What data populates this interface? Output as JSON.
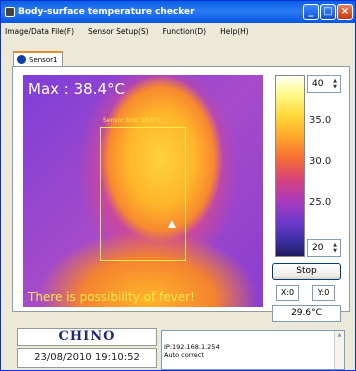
{
  "window": {
    "title": "Body-surface temperature checker",
    "controls": {
      "minimize": "_",
      "maximize": "□",
      "close": "×"
    }
  },
  "menu": [
    {
      "label": "Image/Data File(F)"
    },
    {
      "label": "Sensor Setup(S)"
    },
    {
      "label": "Function(D)"
    },
    {
      "label": "Help(H)"
    }
  ],
  "tabs": [
    {
      "label": "Sensor1",
      "active": true
    }
  ],
  "thermal": {
    "max_label": "Max  :  38.4°C",
    "sensor_box_label": "Sensor limit  30.0°C",
    "warning": "There is possibility of fever!"
  },
  "scale": {
    "upper_value": "40",
    "lower_value": "20",
    "ticks": [
      "35.0",
      "30.0",
      "25.0"
    ]
  },
  "controls": {
    "stop_label": "Stop",
    "x_coord": "X:0",
    "y_coord": "Y:0",
    "spot_temp": "29.6°C"
  },
  "footer": {
    "brand": "CHINO",
    "datetime": "23/08/2010 19:10:52",
    "log_lines": [
      "IP:192.168.1.254",
      "Auto correct"
    ]
  },
  "colors": {
    "title_bar": "#0A5FE3",
    "warning_text": "#FFE84A",
    "brand_text": "#1E2A78"
  }
}
